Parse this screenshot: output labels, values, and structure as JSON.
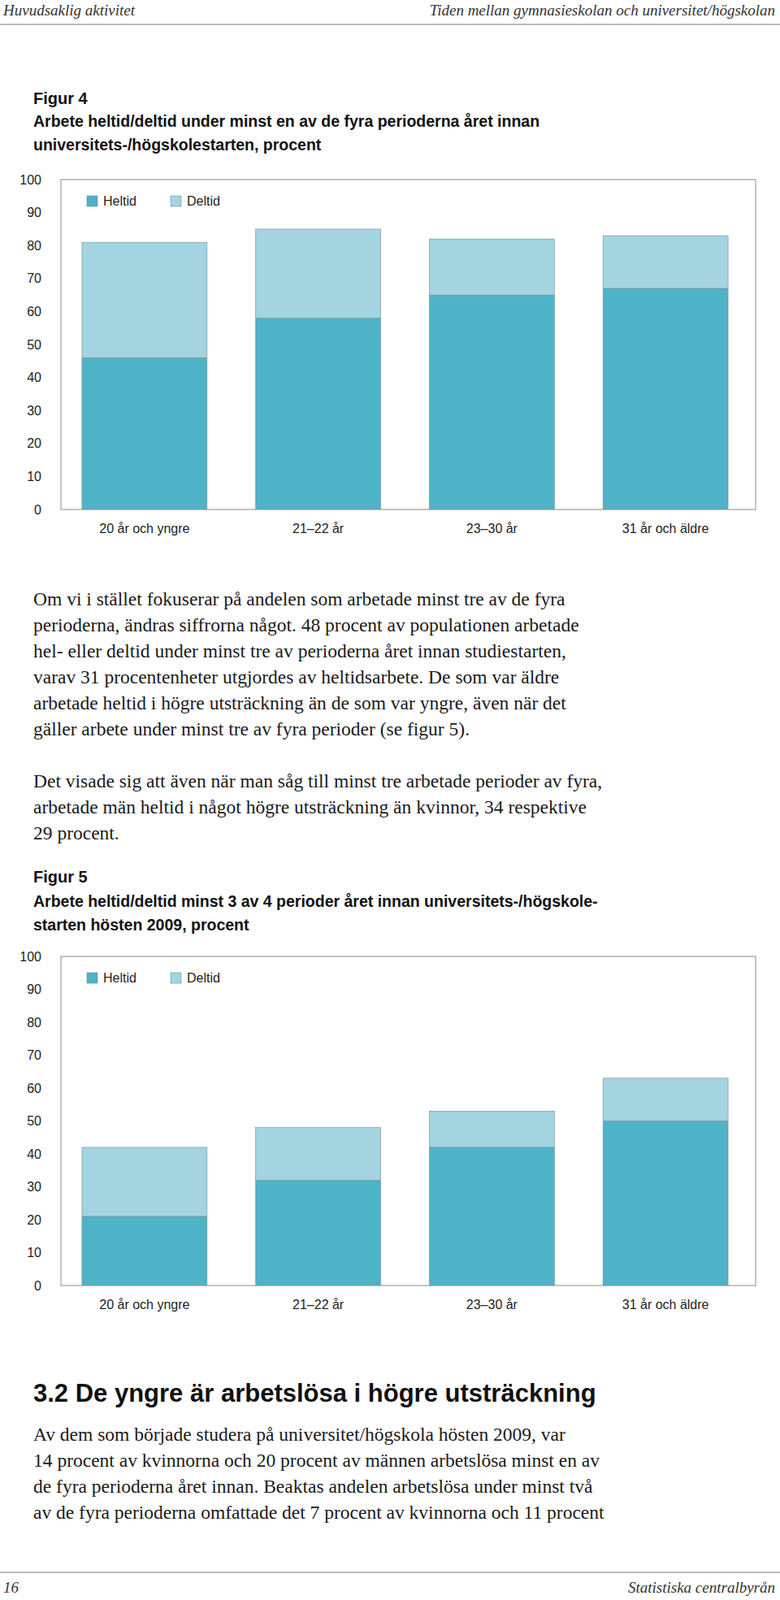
{
  "header": {
    "left": "Huvudsaklig aktivitet",
    "right": "Tiden mellan gymnasieskolan och universitet/högskolan"
  },
  "chart_data": [
    {
      "type": "bar",
      "stacked": true,
      "title": "Figur 4",
      "subtitle": [
        "Arbete heltid/deltid under minst en av de fyra perioderna året innan",
        "universitets-/högskolestarten, procent"
      ],
      "categories": [
        "20 år och yngre",
        "21–22 år",
        "23–30 år",
        "31 år och äldre"
      ],
      "series": [
        {
          "name": "Heltid",
          "color": "#4fb3c7",
          "values": [
            46,
            58,
            65,
            67
          ]
        },
        {
          "name": "Deltid",
          "color": "#a3d4e0",
          "values": [
            35,
            27,
            17,
            16
          ]
        }
      ],
      "ylim": [
        0,
        100
      ],
      "yticks": [
        0,
        10,
        20,
        30,
        40,
        50,
        60,
        70,
        80,
        90,
        100
      ],
      "grid": false,
      "legend": "top-left"
    },
    {
      "type": "bar",
      "stacked": true,
      "title": "Figur 5",
      "subtitle": [
        "Arbete heltid/deltid minst 3 av 4 perioder året innan universitets-/högskole-",
        "starten hösten 2009, procent"
      ],
      "categories": [
        "20 år och yngre",
        "21–22 år",
        "23–30 år",
        "31 år och äldre"
      ],
      "series": [
        {
          "name": "Heltid",
          "color": "#4fb3c7",
          "values": [
            21,
            32,
            42,
            50
          ]
        },
        {
          "name": "Deltid",
          "color": "#a3d4e0",
          "values": [
            21,
            16,
            11,
            13
          ]
        }
      ],
      "ylim": [
        0,
        100
      ],
      "yticks": [
        0,
        10,
        20,
        30,
        40,
        50,
        60,
        70,
        80,
        90,
        100
      ],
      "grid": false,
      "legend": "top-left"
    }
  ],
  "paragraphs": [
    [
      "Om vi i stället fokuserar på andelen som arbetade minst tre av de fyra",
      "perioderna, ändras siffrorna något. 48 procent av populationen arbetade",
      "hel- eller deltid under minst tre av perioderna året innan studiestarten,",
      "varav 31 procentenheter utgjordes av heltidsarbete. De som var äldre",
      "arbetade heltid i högre utsträckning än de som var yngre, även när det",
      "gäller arbete under minst tre av fyra perioder (se figur 5)."
    ],
    [
      "Det visade sig att även när man såg till minst tre arbetade perioder av fyra,",
      "arbetade män heltid i något högre utsträckning än kvinnor, 34 respektive",
      "29 procent."
    ]
  ],
  "section": {
    "heading": "3.2 De yngre är arbetslösa i högre utsträckning",
    "lines": [
      "Av dem som började studera på universitet/högskola hösten 2009, var",
      "14 procent av kvinnorna och 20 procent av männen arbetslösa minst en av",
      "de fyra perioderna året innan. Beaktas andelen arbetslösa under minst två",
      "av de fyra perioderna omfattade det 7 procent av kvinnorna och 11 procent"
    ]
  },
  "footer": {
    "page": "16",
    "publisher": "Statistiska centralbyrån"
  }
}
